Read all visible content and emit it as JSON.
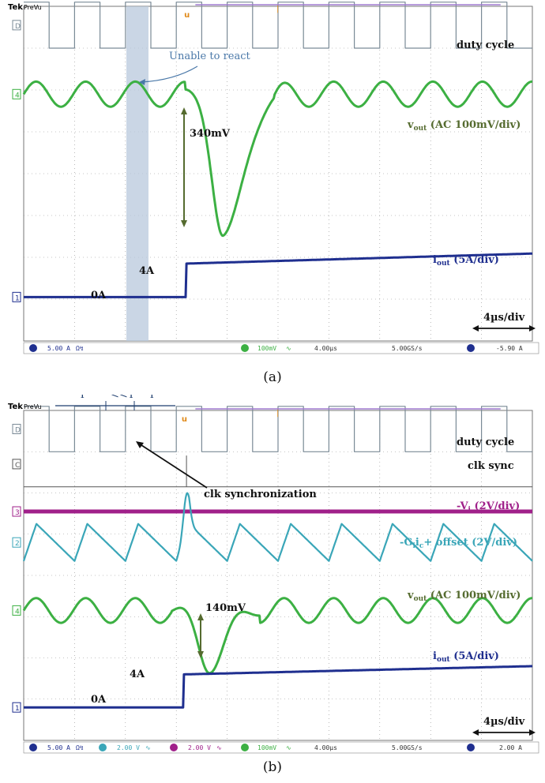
{
  "colors": {
    "grid": "#8c8c8c",
    "duty": "#7a8a96",
    "clk": "#555555",
    "vout": "#3cb043",
    "iout": "#1f2f8f",
    "vi": "#a0208a",
    "gi": "#3aa6b8",
    "annot_text": "#111111",
    "arrow_dark": "#556b2f",
    "highlight": "#b8c8dc",
    "react_text": "#4a78a8"
  },
  "chart_data": [
    {
      "id": "a",
      "type": "line",
      "caption": "(a)",
      "header": {
        "brand": "Tek",
        "mode": "PreVu"
      },
      "time_scale_label": "4µs/div",
      "xlim": [
        0,
        40
      ],
      "x_unit": "µs",
      "divisions": {
        "x": 10,
        "y": 8
      },
      "step_time_us": 12.8,
      "series": [
        {
          "name": "duty cycle",
          "channel": "D",
          "kind": "pwm",
          "period_us": 4.0,
          "duty": 0.5,
          "level_high_div": 0.55,
          "level_low_div": -0.55,
          "offset_div": 3.55
        },
        {
          "name": "vout (AC 100mV/div)",
          "channel": "4",
          "kind": "vout",
          "ripple_mV": 30,
          "ripple_period_us": 3.9,
          "dip_mV": 340,
          "dip_time_us": 15.7,
          "offset_div": 1.9
        },
        {
          "name": "iout (5A/div)",
          "channel": "1",
          "kind": "step",
          "before_A": 0,
          "after_A": 4,
          "final_A": 5.2,
          "offset_div": -2.95,
          "volts_per_div_A": 5
        }
      ],
      "annotations": {
        "unable": "Unable to react",
        "dip": "340mV",
        "vout_label": "v",
        "vout_sub": "out",
        "vout_rest": " (AC 100mV/div)",
        "duty_label": "duty cycle",
        "iout_label": "i",
        "iout_sub": "out",
        "iout_rest": " (5A/div)",
        "zero": "0A",
        "step": "4A"
      },
      "status_bar": {
        "ch1": "5.00 A",
        "ch1_suffix": "Ω↯",
        "ch4": "100mV",
        "ch4_suffix": "∿",
        "timebase": "4.00µs",
        "sample": "5.00GS/s",
        "trigger": "-5.90 A"
      }
    },
    {
      "id": "b",
      "type": "line",
      "caption": "(b)",
      "header": {
        "brand": "Tek",
        "mode": "PreVu"
      },
      "time_scale_label": "4µs/div",
      "xlim": [
        0,
        40
      ],
      "x_unit": "µs",
      "divisions": {
        "x": 10,
        "y": 8
      },
      "step_time_us": 12.6,
      "period_labels": [
        "T",
        "<<T",
        "T"
      ],
      "series": [
        {
          "name": "duty cycle",
          "channel": "D",
          "kind": "pwm",
          "period_us": 4.0,
          "duty": 0.5,
          "offset_div": 3.55
        },
        {
          "name": "clk sync",
          "channel": "C",
          "kind": "pulse",
          "pulse_time_us": 12.8,
          "offset_div": 2.7
        },
        {
          "name": "-Vi (2V/div)",
          "channel": "3",
          "kind": "flat",
          "offset_div": 1.55
        },
        {
          "name": "-Gi ic+ offset (2V/div)",
          "channel": "2",
          "kind": "triangle",
          "period_us": 4.0,
          "offset_div": 0.8
        },
        {
          "name": "vout (AC 100mV/div)",
          "channel": "4",
          "kind": "vout",
          "ripple_mV": 30,
          "ripple_period_us": 3.9,
          "dip_mV": 140,
          "dip_time_us": 14.6,
          "offset_div": -0.85
        },
        {
          "name": "iout (5A/div)",
          "channel": "1",
          "kind": "step",
          "before_A": 0,
          "after_A": 4,
          "final_A": 5.0,
          "offset_div": -3.2,
          "volts_per_div_A": 5
        }
      ],
      "annotations": {
        "period_t1": "T",
        "period_t2": "<<T",
        "period_t3": "T",
        "duty_label": "duty cycle",
        "clk_label": "clk sync",
        "clk_sync": "clk synchronization",
        "vi_label": "-V",
        "vi_sub": "i",
        "vi_rest": " (2V/div)",
        "gi_label": "-G",
        "gi_sub": "i",
        "gi_mid": "i",
        "gi_sub2": "c",
        "gi_rest": "+ offset (2V/div)",
        "dip": "140mV",
        "vout_label": "v",
        "vout_sub": "out",
        "vout_rest": " (AC 100mV/div)",
        "iout_label": "i",
        "iout_sub": "out",
        "iout_rest": " (5A/div)",
        "zero": "0A",
        "step": "4A"
      },
      "status_bar": {
        "ch1": "5.00 A",
        "ch1_suffix": "Ω↯",
        "ch2": "2.00 V",
        "ch2_suffix": "∿",
        "ch3": "2.00 V",
        "ch3_suffix": "∿",
        "ch4": "100mV",
        "ch4_suffix": "∿",
        "timebase": "4.00µs",
        "sample": "5.00GS/s",
        "trigger": "2.00 A"
      }
    }
  ]
}
